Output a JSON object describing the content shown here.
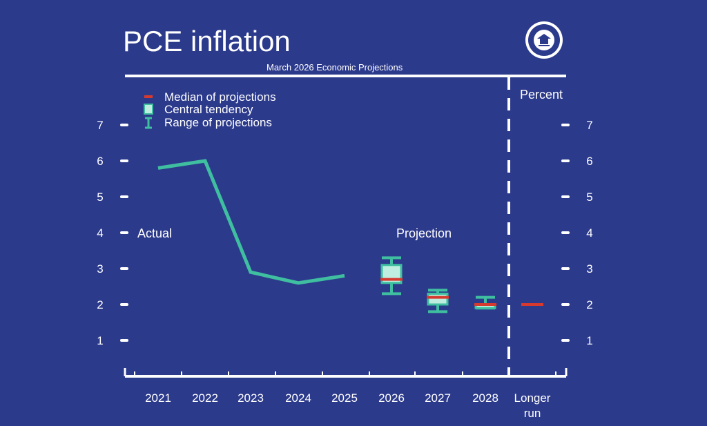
{
  "title": "PCE inflation",
  "subtitle": "March 2026 Economic Projections",
  "seal_text": "United States Federal Reserve System",
  "colors": {
    "background": "#2c3a8c",
    "line": "#3fbfa0",
    "box_fill": "#bfeee0",
    "median": "#d63a2e",
    "text": "#ffffff"
  },
  "chart_data": {
    "type": "line",
    "title": "PCE inflation",
    "subtitle": "March 2026 Economic Projections",
    "ylabel": "Percent",
    "ylim": [
      0,
      8
    ],
    "yticks": [
      1,
      2,
      3,
      4,
      5,
      6,
      7
    ],
    "categories": [
      "2021",
      "2022",
      "2023",
      "2024",
      "2025",
      "2026",
      "2027",
      "2028",
      "Longer run"
    ],
    "annotations": {
      "actual": "Actual",
      "projection": "Projection"
    },
    "legend": {
      "median": "Median of projections",
      "central": "Central tendency",
      "range": "Range of projections"
    },
    "actual": [
      {
        "x": "2021",
        "y": 5.8
      },
      {
        "x": "2022",
        "y": 6.0
      },
      {
        "x": "2023",
        "y": 2.9
      },
      {
        "x": "2024",
        "y": 2.6
      },
      {
        "x": "2025",
        "y": 2.8
      }
    ],
    "projections": [
      {
        "x": "2026",
        "range_low": 2.3,
        "range_high": 3.3,
        "central_low": 2.6,
        "central_high": 3.1,
        "median": 2.7
      },
      {
        "x": "2027",
        "range_low": 1.8,
        "range_high": 2.4,
        "central_low": 2.0,
        "central_high": 2.3,
        "median": 2.2
      },
      {
        "x": "2028",
        "range_low": 1.9,
        "range_high": 2.2,
        "central_low": 1.9,
        "central_high": 2.0,
        "median": 2.0
      },
      {
        "x": "Longer run",
        "range_low": 2.0,
        "range_high": 2.0,
        "central_low": 2.0,
        "central_high": 2.0,
        "median": 2.0
      }
    ]
  }
}
